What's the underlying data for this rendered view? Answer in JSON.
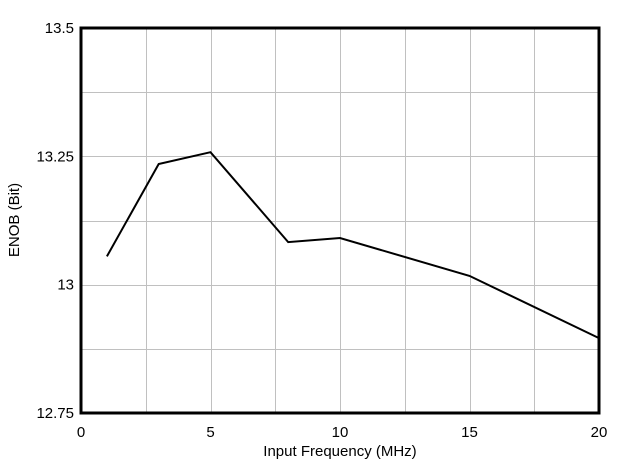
{
  "chart_data": {
    "type": "line",
    "title": "",
    "xlabel": "Input Frequency (MHz)",
    "ylabel": "ENOB (Bit)",
    "xlim": [
      0,
      20
    ],
    "ylim": [
      12.75,
      13.5
    ],
    "x_ticks": [
      0,
      5,
      10,
      15,
      20
    ],
    "x_tick_labels": [
      "0",
      "5",
      "10",
      "15",
      "20"
    ],
    "y_ticks": [
      12.75,
      13,
      13.25,
      13.5
    ],
    "y_tick_labels": [
      "12.75",
      "13",
      "13.25",
      "13.5"
    ],
    "x_grid_step": 2.5,
    "y_grid_step": 0.125,
    "grid": true,
    "legend": null,
    "series": [
      {
        "name": "ENOB",
        "color": "#000000",
        "x": [
          1,
          3,
          5,
          8,
          10,
          15,
          20
        ],
        "y": [
          13.055,
          13.235,
          13.258,
          13.083,
          13.091,
          13.017,
          12.896
        ]
      }
    ]
  },
  "colors": {
    "grid": "#c0c0c0",
    "frame": "#000000",
    "line": "#000000",
    "background": "#ffffff"
  }
}
